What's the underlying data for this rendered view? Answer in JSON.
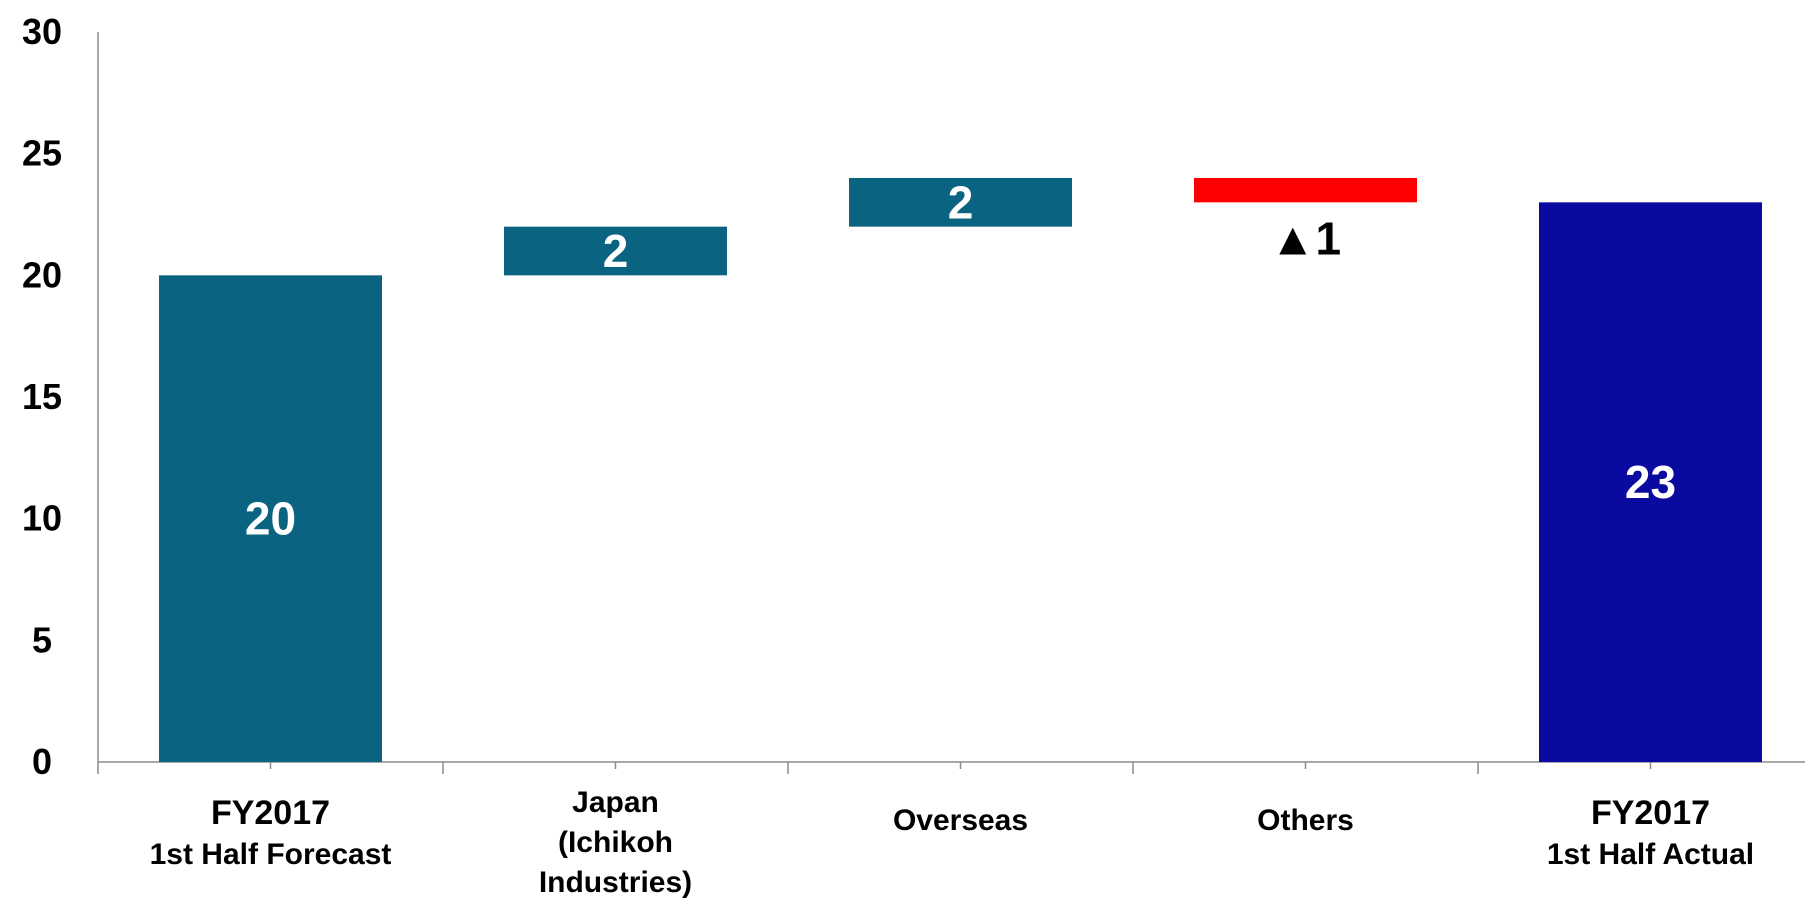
{
  "chart_data": {
    "type": "bar",
    "subtype": "waterfall",
    "title": "",
    "xlabel": "",
    "ylabel": "",
    "ylim": [
      0,
      30
    ],
    "yticks": [
      0,
      5,
      10,
      15,
      20,
      25,
      30
    ],
    "grid": false,
    "legend": "none",
    "categories": [
      {
        "lines": [
          "FY2017",
          "1st Half Forecast"
        ]
      },
      {
        "lines": [
          "Japan",
          "(Ichikoh",
          "Industries)"
        ]
      },
      {
        "lines": [
          "Overseas"
        ]
      },
      {
        "lines": [
          "Others"
        ]
      },
      {
        "lines": [
          "FY2017",
          "1st Half  Actual"
        ]
      }
    ],
    "bars": [
      {
        "kind": "total",
        "base": 0,
        "top": 20,
        "value": 20,
        "label": "20",
        "color": "#0A6380",
        "label_color": "#ffffff",
        "label_position": "inside"
      },
      {
        "kind": "increase",
        "base": 20,
        "top": 22,
        "value": 2,
        "label": "2",
        "color": "#0A6380",
        "label_color": "#ffffff",
        "label_position": "inside"
      },
      {
        "kind": "increase",
        "base": 22,
        "top": 24,
        "value": 2,
        "label": "2",
        "color": "#0A6380",
        "label_color": "#ffffff",
        "label_position": "inside"
      },
      {
        "kind": "decrease",
        "base": 23,
        "top": 24,
        "value": -1,
        "label": "▲1",
        "color": "#FF0000",
        "label_color": "#000000",
        "label_position": "below"
      },
      {
        "kind": "total",
        "base": 0,
        "top": 23,
        "value": 23,
        "label": "23",
        "color": "#0A0AA0",
        "label_color": "#ffffff",
        "label_position": "inside"
      }
    ]
  }
}
